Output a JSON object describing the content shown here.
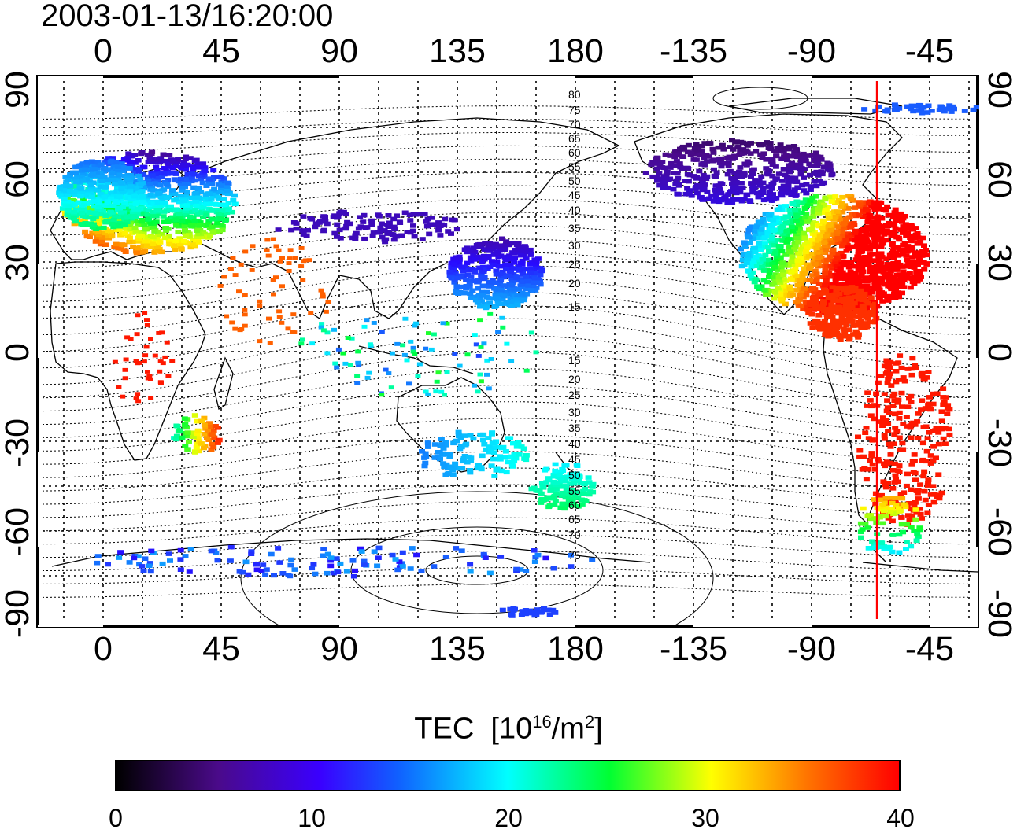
{
  "timestamp": "2003-01-13/16:20:00",
  "map": {
    "lon_ticks": [
      "0",
      "45",
      "90",
      "135",
      "180",
      "-135",
      "-90",
      "-45"
    ],
    "lat_ticks": [
      "90",
      "60",
      "30",
      "0",
      "-30",
      "-60",
      "-90"
    ],
    "contour_labels": [
      "80",
      "75",
      "70",
      "65",
      "60",
      "55",
      "50",
      "45",
      "40",
      "35",
      "30",
      "25",
      "20",
      "15",
      "15",
      "20",
      "25",
      "30",
      "35",
      "40",
      "45",
      "50",
      "55",
      "60",
      "65",
      "70",
      "75"
    ],
    "marker_color": "#ff0000",
    "marker_longitude": -65
  },
  "colorbar": {
    "title_main": "TEC",
    "title_unit_prefix": "[10",
    "title_unit_exp": "16",
    "title_unit_mid": "/m",
    "title_unit_exp2": "2",
    "title_unit_suffix": "]",
    "labels": [
      "0",
      "10",
      "20",
      "30",
      "40"
    ],
    "min": 0,
    "max": 40
  }
}
